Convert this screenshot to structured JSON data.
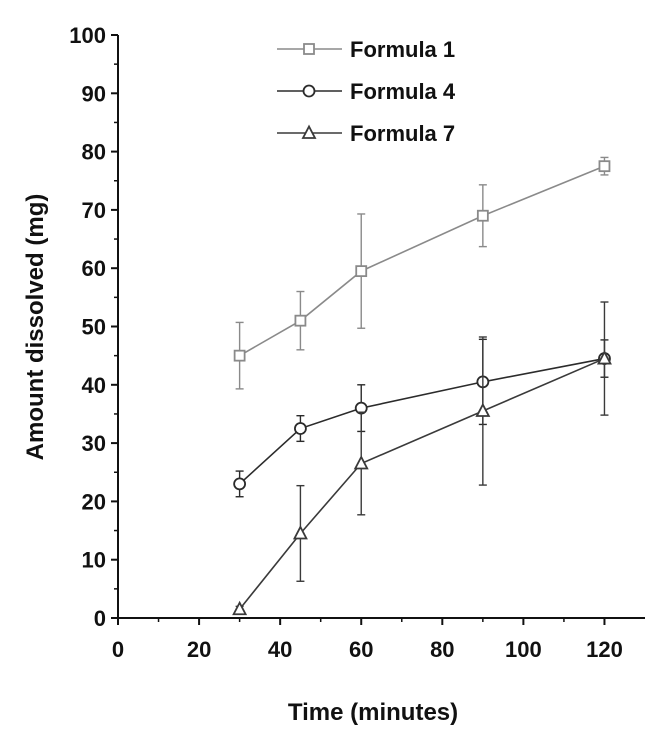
{
  "chart_data": {
    "type": "line",
    "title": "",
    "xlabel": "Time (minutes)",
    "ylabel": "Amount dissolved (mg)",
    "xlim": [
      0,
      130
    ],
    "ylim": [
      0,
      100
    ],
    "xticks": [
      0,
      20,
      40,
      60,
      80,
      100,
      120
    ],
    "yticks": [
      0,
      10,
      20,
      30,
      40,
      50,
      60,
      70,
      80,
      90,
      100
    ],
    "grid": false,
    "legend_position": "top-center",
    "series": [
      {
        "name": "Formula 1",
        "marker": "square",
        "color": "#8a8a8a",
        "x": [
          30,
          45,
          60,
          90,
          120
        ],
        "y": [
          45,
          51,
          59.5,
          69,
          77.5
        ],
        "err": [
          5.7,
          5,
          9.8,
          5.3,
          1.5
        ]
      },
      {
        "name": "Formula 4",
        "marker": "circle",
        "color": "#2b2b2b",
        "x": [
          30,
          45,
          60,
          90,
          120
        ],
        "y": [
          23,
          32.5,
          36,
          40.5,
          44.5
        ],
        "err": [
          2.2,
          2.2,
          4,
          7.3,
          3.2
        ]
      },
      {
        "name": "Formula 7",
        "marker": "triangle",
        "color": "#3a3a3a",
        "x": [
          30,
          45,
          60,
          90,
          120
        ],
        "y": [
          1.5,
          14.5,
          26.5,
          35.5,
          44.5
        ],
        "err": [
          0.5,
          8.2,
          8.8,
          12.7,
          9.7
        ]
      }
    ]
  }
}
